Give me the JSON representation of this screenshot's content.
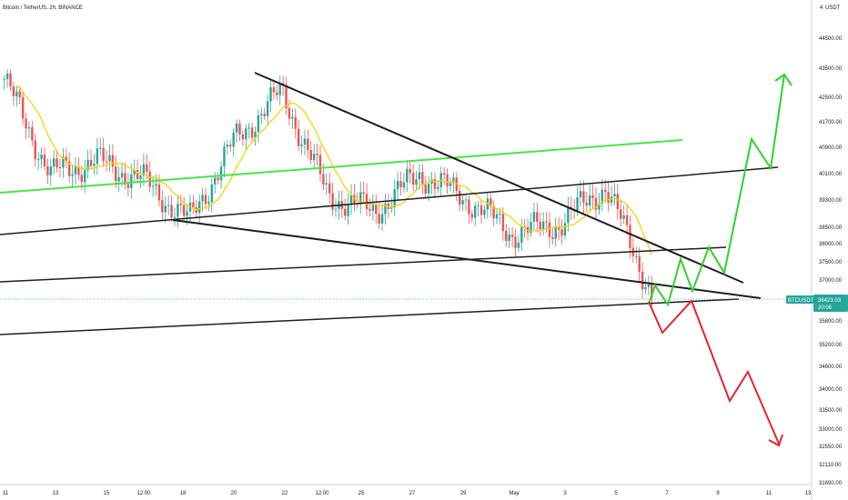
{
  "header": {
    "title": "Bitcoin / TetherUS, 2h, BINANCE",
    "currency": "USDT",
    "currency_prefix": "4"
  },
  "price_tag": {
    "symbol": "BTCUSDT",
    "price": "36423.03",
    "countdown": "20:06"
  },
  "colors": {
    "up_candle": "#26a69a",
    "down_candle": "#ef5350",
    "ma": "#f5d20b",
    "green_line": "#4be24b",
    "trend_lines": "#1e1e1e",
    "bull_path": "#2fd12f",
    "bear_path": "#e3232c",
    "tag_bg": "#26a69a"
  },
  "chart_data": {
    "type": "candlestick",
    "title": "Bitcoin / TetherUS, 2h, BINANCE",
    "y_axis": {
      "unit": "USDT",
      "tick_labels": [
        "44500.00",
        "43500.00",
        "42500.00",
        "41700.00",
        "40900.00",
        "40100.00",
        "39300.00",
        "38500.00",
        "38000.00",
        "37500.00",
        "37000.00",
        "35800.00",
        "35200.00",
        "34600.00",
        "34000.00",
        "33500.00",
        "33000.00",
        "32550.00",
        "32110.00",
        "31690.00"
      ],
      "ylim": [
        31500,
        45500
      ]
    },
    "x_axis": {
      "tick_labels": [
        "11",
        "13",
        "15",
        "12:00",
        "18",
        "20",
        "22",
        "12:00",
        "25",
        "27",
        "29",
        "May",
        "3",
        "5",
        "7",
        "9",
        "11",
        "13"
      ]
    },
    "last_price": 36423.03,
    "approx_price_path": [
      {
        "label": "11",
        "price": 43200
      },
      {
        "label": "13",
        "price": 40200
      },
      {
        "label": "15",
        "price": 40600
      },
      {
        "label": "12:00",
        "price": 40000
      },
      {
        "label": "18",
        "price": 38700
      },
      {
        "label": "20",
        "price": 41300
      },
      {
        "label": "22",
        "price": 42800
      },
      {
        "label": "12:00",
        "price": 39500
      },
      {
        "label": "25",
        "price": 39000
      },
      {
        "label": "27",
        "price": 40200
      },
      {
        "label": "29",
        "price": 39400
      },
      {
        "label": "May",
        "price": 38300
      },
      {
        "label": "3",
        "price": 38600
      },
      {
        "label": "5",
        "price": 39800
      },
      {
        "label": "5",
        "price": 36400
      }
    ],
    "projections": [
      {
        "name": "bullish",
        "points": [
          36400,
          37000,
          36400,
          37600,
          36600,
          37800,
          37100,
          40900,
          40000,
          43200
        ]
      },
      {
        "name": "bearish",
        "points": [
          36400,
          35700,
          36400,
          33800,
          34500,
          32500
        ]
      }
    ]
  }
}
